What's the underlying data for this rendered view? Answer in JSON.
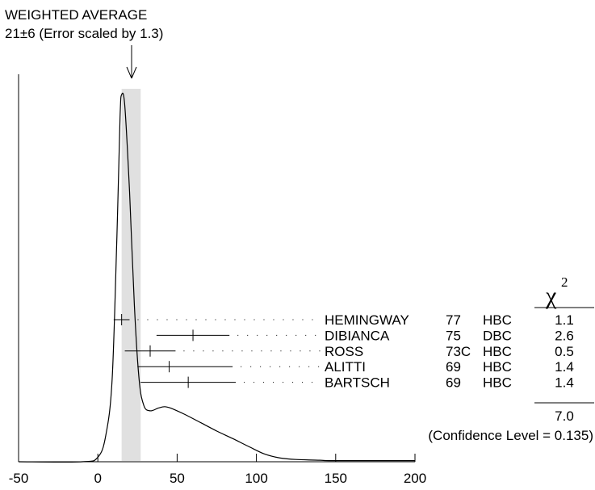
{
  "chart_data": {
    "type": "ideogram",
    "title": "WEIGHTED AVERAGE",
    "subtitle": "21±6 (Error scaled by 1.3)",
    "weighted_average": {
      "value": 21,
      "error": 6,
      "scale_factor": 1.3
    },
    "xlim": [
      -50,
      200
    ],
    "x_ticks": [
      "-50",
      "0",
      "50",
      "100",
      "150",
      "200"
    ],
    "x_tick_values": [
      -50,
      0,
      50,
      100,
      150,
      200
    ],
    "chi2_header": "χ",
    "chi2_header_sup": "2",
    "measurements": [
      {
        "author": "HEMINGWAY",
        "year": "77",
        "tech": "HBC",
        "value": 15,
        "err_lo": 5,
        "err_hi": 5,
        "chi2": "1.1"
      },
      {
        "author": "DIBIANCA",
        "year": "75",
        "tech": "DBC",
        "value": 60,
        "err_lo": 23,
        "err_hi": 23,
        "chi2": "2.6"
      },
      {
        "author": "ROSS",
        "year": "73C",
        "tech": "HBC",
        "value": 33,
        "err_lo": 16,
        "err_hi": 16,
        "chi2": "0.5"
      },
      {
        "author": "ALITTI",
        "year": "69",
        "tech": "HBC",
        "value": 45,
        "err_lo": 20,
        "err_hi": 40,
        "chi2": "1.4"
      },
      {
        "author": "BARTSCH",
        "year": "69",
        "tech": "HBC",
        "value": 57,
        "err_lo": 30,
        "err_hi": 30,
        "chi2": "1.4"
      }
    ],
    "chi2_total": "7.0",
    "confidence_level": "(Confidence Level = 0.135)",
    "ideogram_curve": [
      [
        -50,
        0
      ],
      [
        -10,
        0
      ],
      [
        0,
        0.012
      ],
      [
        5,
        0.07
      ],
      [
        9,
        0.22
      ],
      [
        12,
        0.6
      ],
      [
        14,
        0.92
      ],
      [
        15,
        0.98
      ],
      [
        17,
        0.95
      ],
      [
        20,
        0.72
      ],
      [
        23,
        0.42
      ],
      [
        26,
        0.22
      ],
      [
        29,
        0.15
      ],
      [
        33,
        0.136
      ],
      [
        38,
        0.143
      ],
      [
        42,
        0.147
      ],
      [
        46,
        0.143
      ],
      [
        55,
        0.126
      ],
      [
        65,
        0.104
      ],
      [
        75,
        0.082
      ],
      [
        85,
        0.062
      ],
      [
        95,
        0.041
      ],
      [
        105,
        0.021
      ],
      [
        115,
        0.01
      ],
      [
        125,
        0.006
      ],
      [
        140,
        0.004
      ],
      [
        150,
        0.003
      ],
      [
        200,
        0.003
      ]
    ]
  }
}
